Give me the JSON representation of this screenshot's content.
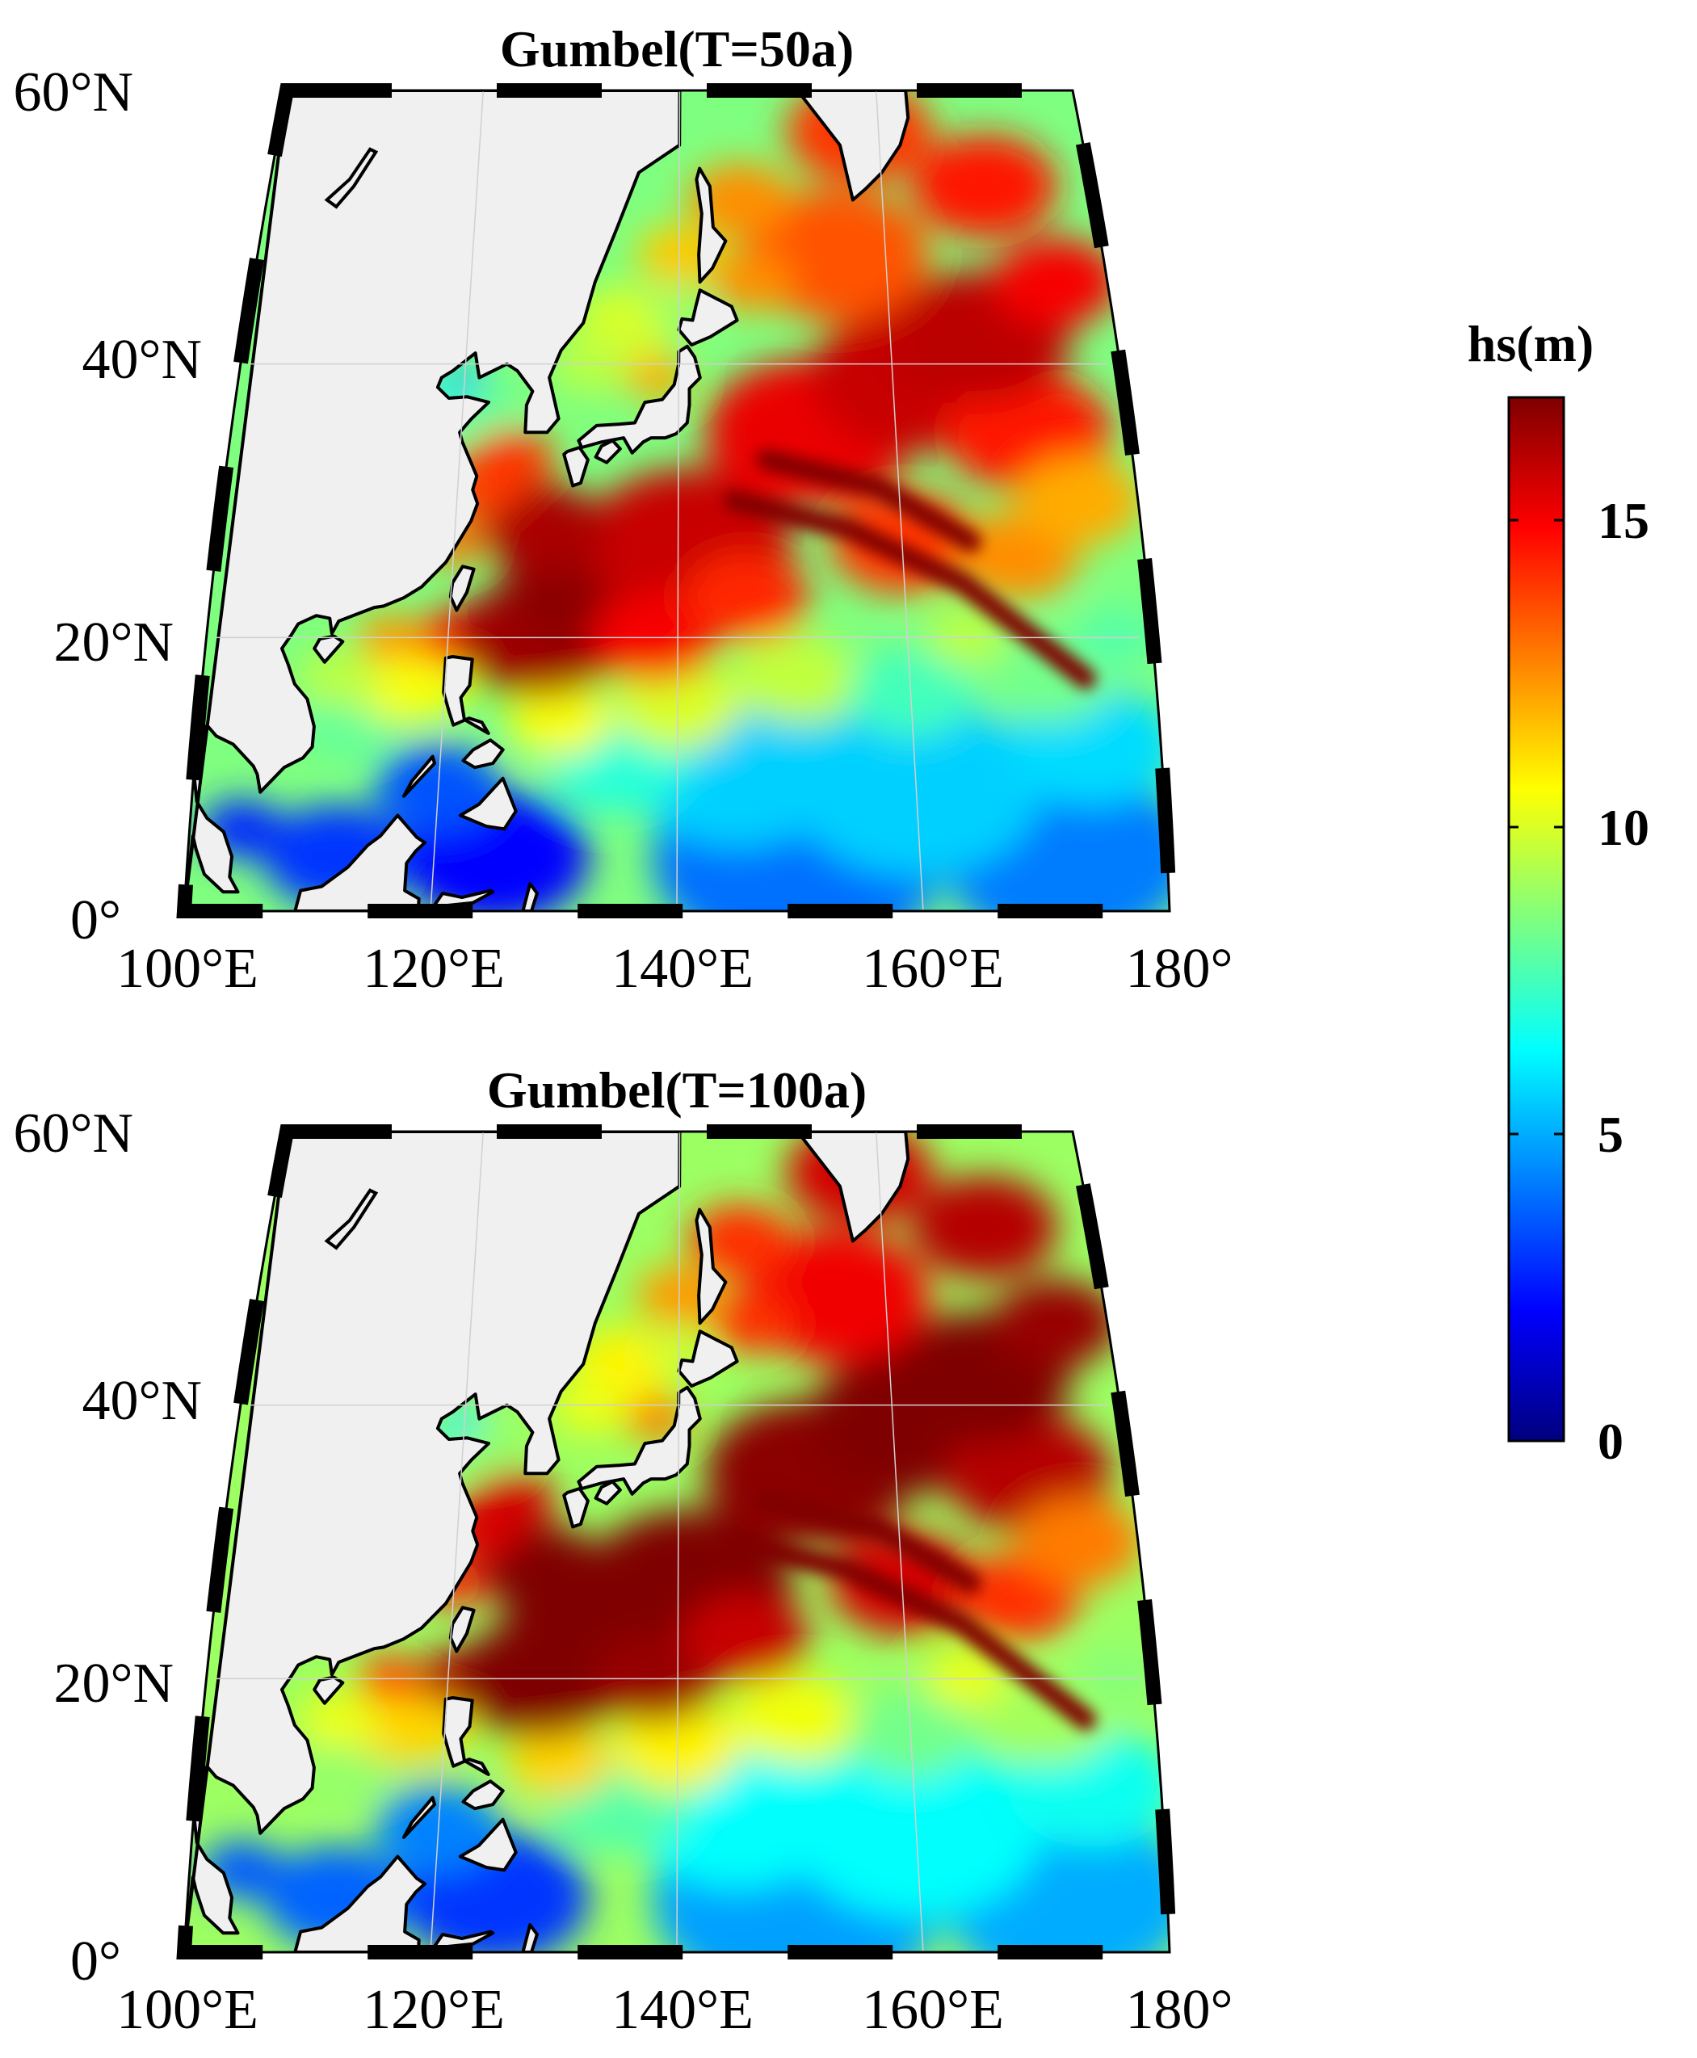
{
  "colors": {
    "land": "#f0f0f0",
    "coast": "#000000",
    "frame_dark": "#000000",
    "frame_light": "#ffffff",
    "grid": "#d0d0d0"
  },
  "colormap": [
    "#00007f",
    "#0000ff",
    "#007fff",
    "#00ffff",
    "#7fff7f",
    "#ffff00",
    "#ff7f00",
    "#ff0000",
    "#7f0000"
  ],
  "panels": [
    {
      "title": "Gumbel(T=50a)",
      "lat_labels": [
        "60°N",
        "40°N",
        "20°N",
        "0°"
      ],
      "lon_labels": [
        "100°E",
        "120°E",
        "140°E",
        "160°E",
        "180°"
      ],
      "extent": {
        "lon": [
          100,
          180
        ],
        "lat": [
          0,
          60
        ]
      }
    },
    {
      "title": "Gumbel(T=100a)",
      "lat_labels": [
        "60°N",
        "40°N",
        "20°N",
        "0°"
      ],
      "lon_labels": [
        "100°E",
        "120°E",
        "140°E",
        "160°E",
        "180°"
      ],
      "extent": {
        "lon": [
          100,
          180
        ],
        "lat": [
          0,
          60
        ]
      }
    }
  ],
  "colorbar": {
    "title": "hs(m)",
    "range": [
      0,
      17
    ],
    "ticks": [
      {
        "value": 0,
        "label": "0"
      },
      {
        "value": 5,
        "label": "5"
      },
      {
        "value": 10,
        "label": "10"
      },
      {
        "value": 15,
        "label": "15"
      }
    ]
  }
}
